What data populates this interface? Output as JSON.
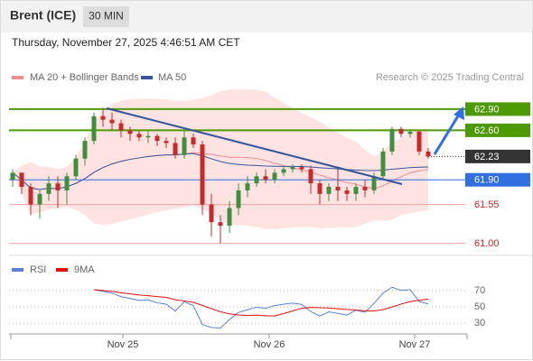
{
  "header": {
    "title": "Brent (ICE)",
    "timeframe": "30 MIN",
    "timestamp": "Thursday, November 27, 2025 4:46:51 AM CET"
  },
  "chart_data": {
    "type": "candlestick",
    "legend": [
      "MA 20 + Bollinger Bands",
      "MA 50"
    ],
    "legend_colors": [
      "#f08c8c",
      "#34569a"
    ],
    "credit": "Research © 2025 Trading Central",
    "up_color": "#3f8f3f",
    "down_color": "#c72a2a",
    "open": [
      61.9,
      62.0,
      61.8,
      61.55,
      61.7,
      61.85,
      61.75,
      61.95,
      62.2,
      62.45,
      62.8,
      62.75,
      62.7,
      62.6,
      62.55,
      62.5,
      62.52,
      62.45,
      62.42,
      62.25,
      62.5,
      62.4,
      61.55,
      61.3,
      61.25,
      61.5,
      61.75,
      61.85,
      61.95,
      61.9,
      62.0,
      62.05,
      62.08,
      62.05,
      61.85,
      61.7,
      61.8,
      61.75,
      61.7,
      61.8,
      61.75,
      61.95,
      62.3,
      62.62,
      62.55,
      62.58,
      62.3
    ],
    "high": [
      62.05,
      62.0,
      61.85,
      61.75,
      61.95,
      61.95,
      62.0,
      62.25,
      62.5,
      62.85,
      62.92,
      62.85,
      62.75,
      62.65,
      62.6,
      62.6,
      62.55,
      62.5,
      62.5,
      62.6,
      62.55,
      62.45,
      61.7,
      61.4,
      61.6,
      61.85,
      61.95,
      62.0,
      62.05,
      62.05,
      62.1,
      62.12,
      62.12,
      62.1,
      61.9,
      61.85,
      62.05,
      61.8,
      61.85,
      61.9,
      62.0,
      62.35,
      62.65,
      62.65,
      62.62,
      62.6,
      62.35
    ],
    "low": [
      61.8,
      61.7,
      61.4,
      61.35,
      61.6,
      61.5,
      61.55,
      61.9,
      62.1,
      62.4,
      62.65,
      62.6,
      62.5,
      62.45,
      62.45,
      62.42,
      62.38,
      62.35,
      62.2,
      62.2,
      62.35,
      61.4,
      61.1,
      61.0,
      61.15,
      61.4,
      61.65,
      61.8,
      61.85,
      61.85,
      61.95,
      62.0,
      62.0,
      61.7,
      61.55,
      61.6,
      61.6,
      61.6,
      61.6,
      61.65,
      61.7,
      61.9,
      62.25,
      62.5,
      62.5,
      62.25,
      62.2
    ],
    "close": [
      62.0,
      61.8,
      61.55,
      61.7,
      61.85,
      61.75,
      61.95,
      62.2,
      62.45,
      62.8,
      62.75,
      62.7,
      62.6,
      62.55,
      62.5,
      62.52,
      62.45,
      62.42,
      62.25,
      62.5,
      62.4,
      61.55,
      61.3,
      61.25,
      61.5,
      61.75,
      61.85,
      61.95,
      61.9,
      62.0,
      62.05,
      62.08,
      62.05,
      61.85,
      61.7,
      61.8,
      61.75,
      61.7,
      61.8,
      61.75,
      61.95,
      62.3,
      62.62,
      62.55,
      62.58,
      62.3,
      62.23
    ],
    "xlim": [
      -0.4,
      50.1
    ],
    "xticks": [
      {
        "value": 12.2,
        "label": "Nov 25"
      },
      {
        "value": 28.4,
        "label": "Nov 26"
      },
      {
        "value": 44.5,
        "label": "Nov 27"
      }
    ],
    "ylim": [
      60.83,
      63.55
    ],
    "levels": [
      {
        "value": 62.9,
        "label": "62.90",
        "color": "#4e9a06",
        "style": "box"
      },
      {
        "value": 62.6,
        "label": "62.60",
        "color": "#4e9a06",
        "style": "box"
      },
      {
        "value": 62.23,
        "label": "62.23",
        "color": "#333333",
        "style": "box"
      },
      {
        "value": 61.9,
        "label": "61.90",
        "color": "#2f6fe0",
        "style": "box"
      },
      {
        "value": 61.55,
        "label": "61.55",
        "color": "#d62020",
        "style": "text"
      },
      {
        "value": 61.0,
        "label": "61.00",
        "color": "#d62020",
        "style": "text"
      }
    ],
    "rsi_legend": [
      "RSI",
      "9MA"
    ],
    "rsi_colors": [
      "#5b7fd9",
      "#e01010"
    ],
    "rsi_ylim": [
      19,
      81
    ],
    "rsi_yticks": [
      70,
      50,
      30
    ]
  }
}
